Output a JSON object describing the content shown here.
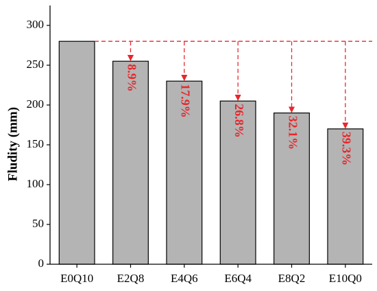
{
  "chart_data": {
    "type": "bar",
    "y_label": "Fludity (mm)",
    "categories": [
      "E0Q10",
      "E2Q8",
      "E4Q6",
      "E6Q4",
      "E8Q2",
      "E10Q0"
    ],
    "values": [
      280,
      255,
      230,
      205,
      190,
      170
    ],
    "color": "#b4b4b4",
    "ylim": [
      0,
      325
    ],
    "yticks": [
      0,
      50,
      100,
      150,
      200,
      250,
      300
    ],
    "annotation_color": "#e8262b",
    "annotations": [
      {
        "category": "E2Q8",
        "text": "8.9%"
      },
      {
        "category": "E4Q6",
        "text": "17.9%"
      },
      {
        "category": "E6Q4",
        "text": "26.8%"
      },
      {
        "category": "E8Q2",
        "text": "32.1%"
      },
      {
        "category": "E10Q0",
        "text": "39.3%"
      }
    ]
  }
}
